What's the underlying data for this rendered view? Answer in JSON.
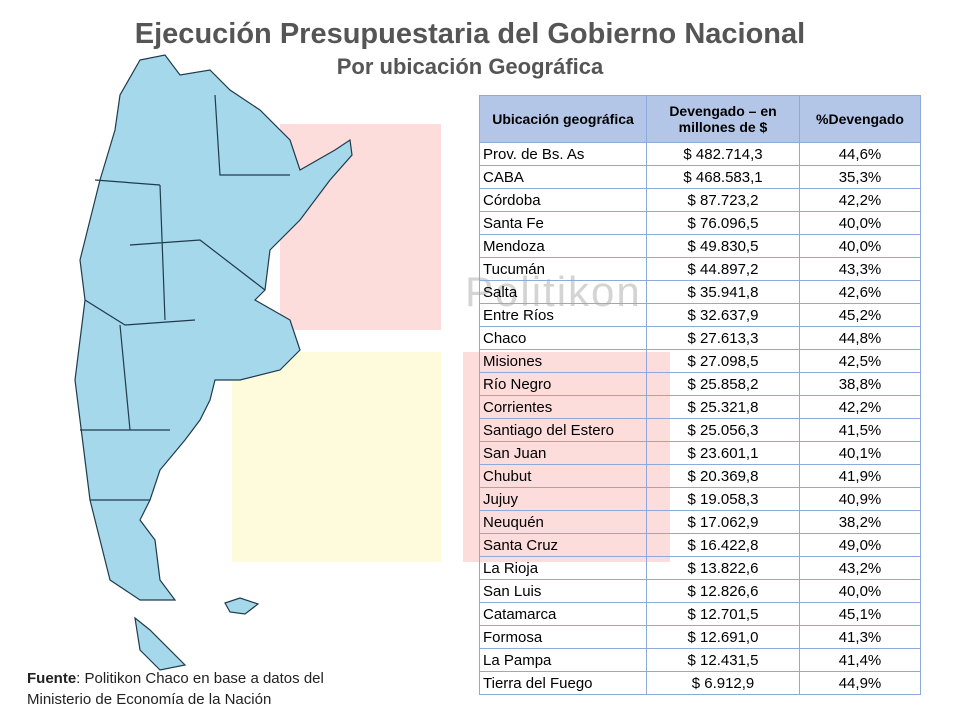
{
  "header": {
    "title": "Ejecución Presupuestaria del Gobierno Nacional",
    "subtitle": "Por ubicación Geográfica"
  },
  "watermark": "Politikon",
  "table": {
    "columns": [
      "Ubicación geográfica",
      "Devengado – en millones de $",
      "%Devengado"
    ],
    "rows": [
      [
        "Prov. de Bs. As",
        "$ 482.714,3",
        "44,6%"
      ],
      [
        "CABA",
        "$ 468.583,1",
        "35,3%"
      ],
      [
        "Córdoba",
        "$ 87.723,2",
        "42,2%"
      ],
      [
        "Santa Fe",
        "$ 76.096,5",
        "40,0%"
      ],
      [
        "Mendoza",
        "$ 49.830,5",
        "40,0%"
      ],
      [
        "Tucumán",
        "$ 44.897,2",
        "43,3%"
      ],
      [
        "Salta",
        "$ 35.941,8",
        "42,6%"
      ],
      [
        "Entre Ríos",
        "$ 32.637,9",
        "45,2%"
      ],
      [
        "Chaco",
        "$ 27.613,3",
        "44,8%"
      ],
      [
        "Misiones",
        "$ 27.098,5",
        "42,5%"
      ],
      [
        "Río Negro",
        "$ 25.858,2",
        "38,8%"
      ],
      [
        "Corrientes",
        "$ 25.321,8",
        "42,2%"
      ],
      [
        "Santiago del Estero",
        "$ 25.056,3",
        "41,5%"
      ],
      [
        "San Juan",
        "$ 23.601,1",
        "40,1%"
      ],
      [
        "Chubut",
        "$ 20.369,8",
        "41,9%"
      ],
      [
        "Jujuy",
        "$ 19.058,3",
        "40,9%"
      ],
      [
        "Neuquén",
        "$ 17.062,9",
        "38,2%"
      ],
      [
        "Santa Cruz",
        "$ 16.422,8",
        "49,0%"
      ],
      [
        "La Rioja",
        "$ 13.822,6",
        "43,2%"
      ],
      [
        "San Luis",
        "$ 12.826,6",
        "40,0%"
      ],
      [
        "Catamarca",
        "$ 12.701,5",
        "45,1%"
      ],
      [
        "Formosa",
        "$ 12.691,0",
        "41,3%"
      ],
      [
        "La Pampa",
        "$ 12.431,5",
        "41,4%"
      ],
      [
        "Tierra del Fuego",
        "$ 6.912,9",
        "44,9%"
      ]
    ]
  },
  "source": {
    "label": "Fuente",
    "line1": ": Politikon Chaco en base a datos del",
    "line2": "Ministerio de Economía de la Nación"
  }
}
